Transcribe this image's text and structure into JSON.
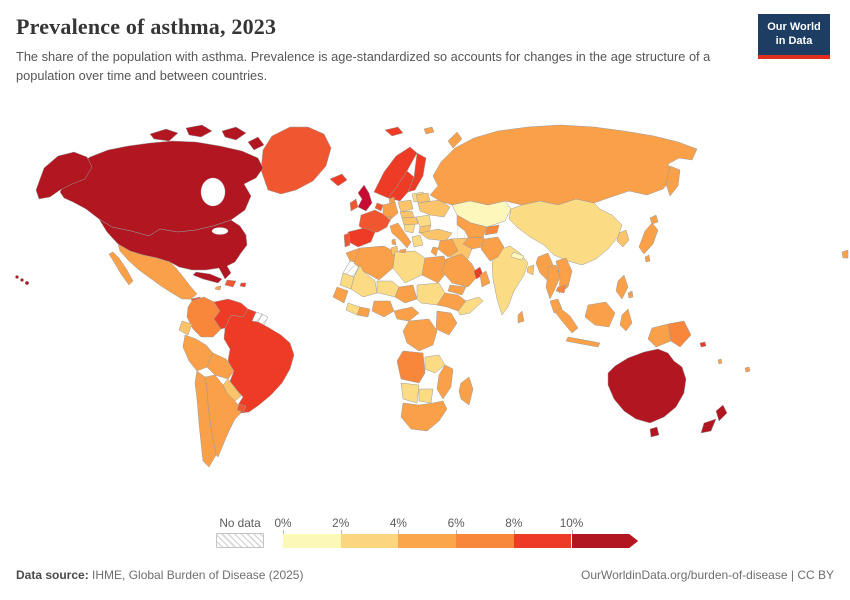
{
  "header": {
    "title": "Prevalence of asthma, 2023",
    "subtitle": "The share of the population with asthma. Prevalence is age-standardized so accounts for changes in the age structure of a population over time and between countries."
  },
  "logo": {
    "line1": "Our World",
    "line2": "in Data",
    "bg": "#1d3d63",
    "accent": "#dc2f1d"
  },
  "legend": {
    "no_data_label": "No data",
    "tick_labels": [
      "0%",
      "2%",
      "4%",
      "6%",
      "8%",
      "10%"
    ],
    "bins": [
      {
        "range": "0%-2%",
        "color": "#fcf8b8",
        "arrow": false
      },
      {
        "range": "2%-4%",
        "color": "#fcd67e",
        "arrow": false
      },
      {
        "range": "4%-6%",
        "color": "#faa64a",
        "arrow": false
      },
      {
        "range": "6%-8%",
        "color": "#f8873b",
        "arrow": false
      },
      {
        "range": "8%-10%",
        "color": "#ee3b25",
        "arrow": false
      },
      {
        "range": "10%+",
        "color": "#b11621",
        "arrow": true
      }
    ]
  },
  "footer": {
    "source_label": "Data source:",
    "source_value": " IHME, Global Burden of Disease (2025)",
    "credit": "OurWorldinData.org/burden-of-disease | CC BY"
  },
  "map": {
    "palette": {
      "p1": "#fdf7bc",
      "p2": "#fbdc85",
      "p3": "#fbc46a",
      "p4": "#f9a049",
      "p5": "#f8873b",
      "p6": "#f0562f",
      "p7": "#ee3b25",
      "p8": "#b11621",
      "p9": "#c70c33"
    },
    "fills": {
      "greenland": "p6",
      "canada": "p8",
      "arctic-island-1": "p8",
      "arctic-island-2": "p8",
      "arctic-island-3": "p8",
      "arctic-island-4": "p8",
      "alaska": "p8",
      "usa": "p8",
      "hawaii-1": "p8",
      "hawaii-2": "p8",
      "hawaii-3": "p8",
      "mexico": "p4",
      "baja": "p4",
      "guatemala": "p6",
      "honduras": "p6",
      "nicaragua": "p8",
      "costa-rica-panama": "p8",
      "cuba": "p8",
      "hispaniola": "p6",
      "jamaica": "p4",
      "puerto-rico": "p7",
      "colombia": "p5",
      "venezuela": "p7",
      "guyana": "p7",
      "suriname": "no_data",
      "french-guiana": "no_data",
      "brazil": "p7",
      "ecuador": "p3",
      "peru": "p4",
      "bolivia": "p4",
      "paraguay": "p3",
      "chile": "p4",
      "argentina": "p4",
      "uruguay": "p6",
      "morocco": "p4",
      "western-sahara": "no_data",
      "algeria": "p4",
      "tunisia": "p3",
      "libya": "p2",
      "egypt": "p4",
      "mauritania": "p2",
      "mali": "p2",
      "niger": "p2",
      "chad": "p4",
      "sudan": "p2",
      "senegal-guinea": "p4",
      "cote-divoire": "p2",
      "ghana-togo": "p4",
      "nigeria": "p4",
      "cameroon-car": "p4",
      "ethiopia": "p4",
      "somalia": "p2",
      "kenya-tanzania": "p4",
      "drc": "p4",
      "angola": "p5",
      "zambia": "p2",
      "mozambique-zimbabwe": "p4",
      "namibia": "p2",
      "botswana": "p2",
      "south-africa": "p4",
      "madagascar": "p4",
      "iceland": "p7",
      "svalbard": "p7",
      "uk": "p9",
      "ireland": "p6",
      "norway": "p7",
      "sweden": "p7",
      "finland": "p7",
      "baltics": "p2",
      "denmark": "p4",
      "germany": "p4",
      "netherlands-belgium": "p6",
      "poland": "p3",
      "czech-slovakia": "p3",
      "austria-hungary": "p3",
      "switzerland": "p4",
      "france": "p6",
      "spain": "p7",
      "portugal": "p6",
      "italy": "p4",
      "sicily": "p4",
      "sardinia": "p4",
      "balkans": "p2",
      "greece": "p2",
      "romania": "p2",
      "bulgaria": "p3",
      "ukraine": "p3",
      "belarus": "p3",
      "russia": "p4",
      "kamchatka": "p4",
      "novaya-zemlya": "p4",
      "franz-josef": "p4",
      "kazakhstan": "p1",
      "central-asia": "p4",
      "kyrgyz-tajik": "p5",
      "mongolia": "p1",
      "china": "p2",
      "korea": "p3",
      "japan": "p4",
      "hokkaido": "p4",
      "taiwan": "p4",
      "india": "p2",
      "nepal": "p1",
      "bangladesh": "p3",
      "sri-lanka": "p4",
      "pakistan": "p4",
      "afghanistan": "p4",
      "iran": "p3",
      "turkey": "p3",
      "iraq-syria": "p4",
      "jordan-israel": "p4",
      "saudi-arabia": "p4",
      "uae": "p7",
      "oman": "p4",
      "yemen": "p4",
      "myanmar": "p4",
      "thailand": "p4",
      "laos-vietnam": "p4",
      "cambodia": "p5",
      "malaysia": "p4",
      "sumatra": "p4",
      "java": "p4",
      "borneo": "p4",
      "sulawesi": "p4",
      "philippines": "p4",
      "philippines-2": "p4",
      "new-guinea-west": "p4",
      "papua-new-guinea": "p5",
      "solomon": "p7",
      "vanuatu": "p4",
      "fiji": "p4",
      "east-sliver": "p4",
      "australia": "p8",
      "tasmania": "p8",
      "nz-north": "p8",
      "nz-south": "p8"
    }
  }
}
